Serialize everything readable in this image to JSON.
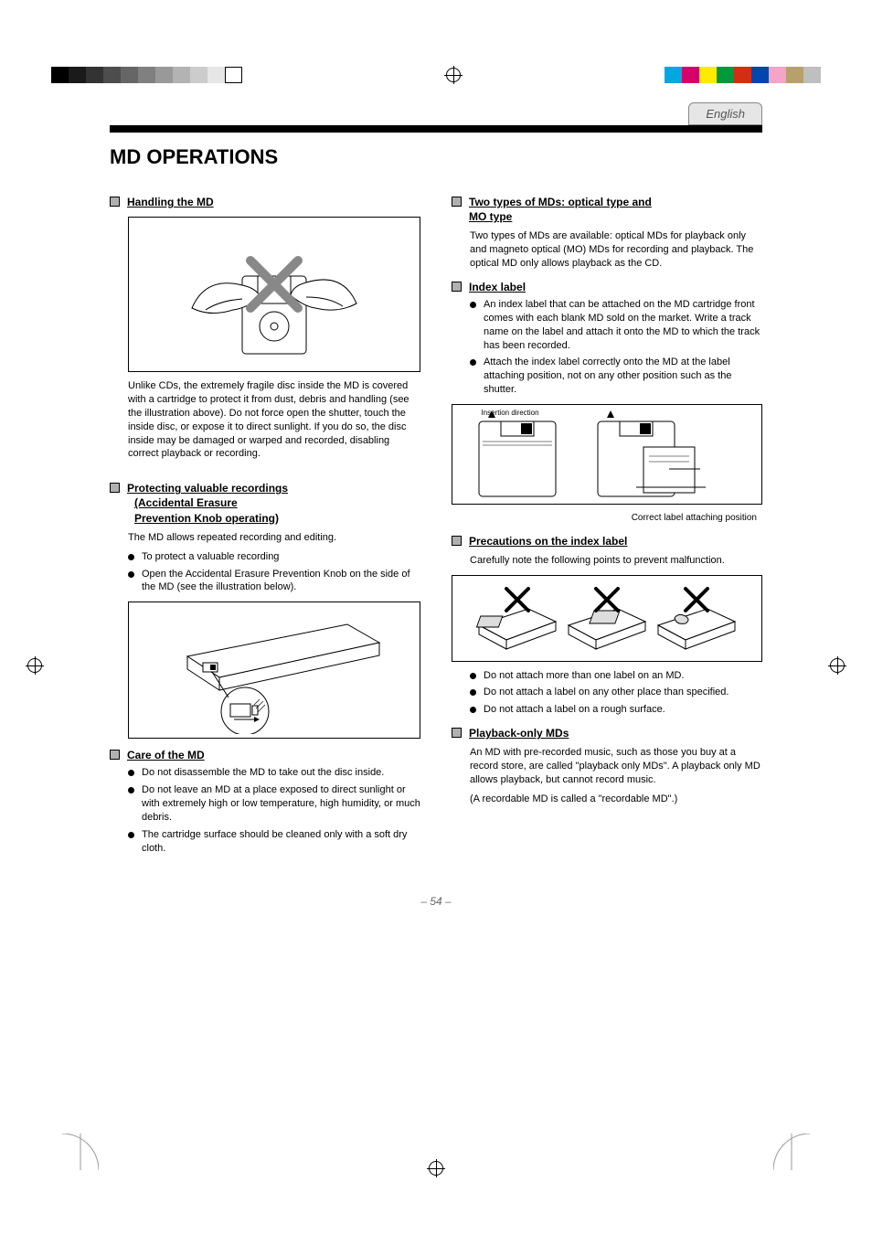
{
  "printmarks": {
    "gray_steps": [
      "#000000",
      "#1a1a1a",
      "#333333",
      "#4d4d4d",
      "#666666",
      "#808080",
      "#999999",
      "#b3b3b3",
      "#cccccc",
      "#e6e6e6",
      "#ffffff"
    ],
    "color_steps": [
      "#00a7e1",
      "#d6006d",
      "#ffea00",
      "#009a3d",
      "#d42e12",
      "#0046ad",
      "#f5a3c7",
      "#b7a16a",
      "#bfbfbf"
    ]
  },
  "tab": "English",
  "title": "MD OPERATIONS",
  "page_number": "– 54 –",
  "left": {
    "h1": "Handling the MD",
    "fig1_alt": "Hands holding MD cartridge — do not open the shutter",
    "p1": "Unlike CDs, the extremely fragile disc inside the MD is covered with a cartridge to protect it from dust, debris and handling (see the illustration above). Do not force open the shutter, touch the inside disc, or expose it to direct sunlight. If you do so, the disc inside may be damaged or warped and recorded, disabling correct playback or recording.",
    "h2_l1": "Protecting valuable recordings",
    "h2_l2": "(Accidental Erasure",
    "h2_l3": "Prevention Knob operating)",
    "p2": "The MD allows repeated recording and editing.",
    "b1": "To protect a valuable recording",
    "b2": "Open the Accidental Erasure Prevention Knob on the side of the MD (see the illustration below).",
    "fig2_alt": "MD cartridge side view with write-protect knob detail",
    "h3": "Care of the MD",
    "c1": "Do not disassemble the MD to take out the disc inside.",
    "c2": "Do not leave an MD at a place exposed to direct sunlight or with extremely high or low temperature, high humidity, or much debris.",
    "c3": "The cartridge surface should be cleaned only with a soft dry cloth."
  },
  "right": {
    "h1_l1": "Two types of MDs: optical type and",
    "h1_l2": "MO type",
    "p1": "Two types of MDs are available: optical MDs for playback only and magneto optical (MO) MDs for recording and playback. The optical MD only allows playback as the CD.",
    "h2": "Index label",
    "b1": "An index label that can be attached on the MD cartridge front comes with each blank MD sold on the market. Write a track name on the label and attach it onto the MD to which the track has been recorded.",
    "b2": "Attach the index label correctly onto the MD at the label attaching position, not on any other position such as the shutter.",
    "fig1_correct": "Correct label attaching position",
    "fig1_arrow": "Insertion direction",
    "h3": "Precautions on the index label",
    "p3": "Carefully note the following points to prevent malfunction.",
    "fig2_alt": "Three incorrect label placements each marked with an X",
    "c1": "Do not attach more than one label on an MD.",
    "c2": "Do not attach a label on any other place than specified.",
    "c3": "Do not attach a label on a rough surface.",
    "h4": "Playback-only MDs",
    "p4": "An MD with pre-recorded music, such as those you buy at a record store, are called \"playback only MDs\". A playback only MD allows playback, but cannot record music.",
    "p5": "(A recordable MD is called a \"recordable MD\".)"
  }
}
